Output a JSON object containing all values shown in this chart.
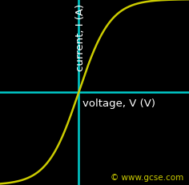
{
  "background_color": "#000000",
  "axis_color": "#00cccc",
  "curve_color": "#cccc00",
  "xlabel": "voltage, V (V)",
  "ylabel": "current, I (A)",
  "xlabel_color": "#ffffff",
  "ylabel_color": "#ffffff",
  "copyright_text": "© www.gcse.com",
  "copyright_color": "#cccc00",
  "xlabel_fontsize": 9.5,
  "ylabel_fontsize": 9.5,
  "copyright_fontsize": 7.5,
  "curve_linewidth": 1.8,
  "axis_linewidth": 1.8,
  "xlim": [
    -2.5,
    3.5
  ],
  "ylim": [
    -2.5,
    2.5
  ],
  "curve_scale": 2.5,
  "curve_steepness": 2.5
}
